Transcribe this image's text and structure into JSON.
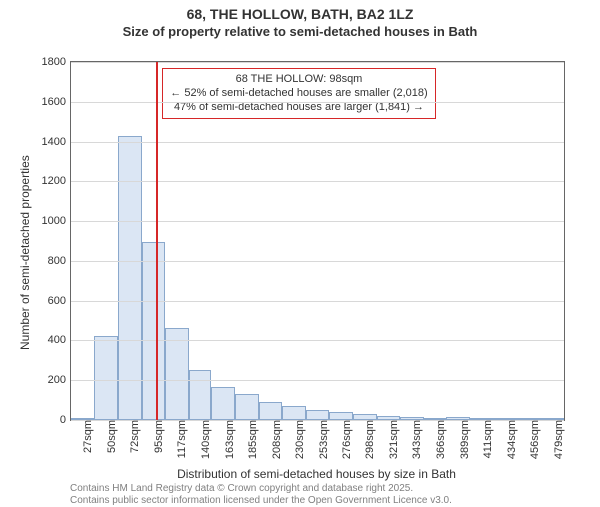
{
  "title_line1": "68, THE HOLLOW, BATH, BA2 1LZ",
  "title_line2": "Size of property relative to semi-detached houses in Bath",
  "chart": {
    "type": "histogram",
    "xlabel": "Distribution of semi-detached houses by size in Bath",
    "ylabel": "Number of semi-detached properties",
    "y_min": 0,
    "y_max": 1800,
    "y_ticks": [
      0,
      200,
      400,
      600,
      800,
      1000,
      1200,
      1400,
      1600,
      1800
    ],
    "x_tick_labels": [
      "27sqm",
      "50sqm",
      "72sqm",
      "95sqm",
      "117sqm",
      "140sqm",
      "163sqm",
      "185sqm",
      "208sqm",
      "230sqm",
      "253sqm",
      "276sqm",
      "298sqm",
      "321sqm",
      "343sqm",
      "366sqm",
      "389sqm",
      "411sqm",
      "434sqm",
      "456sqm",
      "479sqm"
    ],
    "x_tick_positions": [
      27,
      50,
      72,
      95,
      117,
      140,
      163,
      185,
      208,
      230,
      253,
      276,
      298,
      321,
      343,
      366,
      389,
      411,
      434,
      456,
      479
    ],
    "x_min": 16,
    "x_max": 490,
    "bars": [
      {
        "x_start": 16,
        "x_end": 38,
        "value": 5
      },
      {
        "x_start": 38,
        "x_end": 61,
        "value": 420
      },
      {
        "x_start": 61,
        "x_end": 84,
        "value": 1430
      },
      {
        "x_start": 84,
        "x_end": 106,
        "value": 895
      },
      {
        "x_start": 106,
        "x_end": 129,
        "value": 465
      },
      {
        "x_start": 129,
        "x_end": 151,
        "value": 250
      },
      {
        "x_start": 151,
        "x_end": 174,
        "value": 165
      },
      {
        "x_start": 174,
        "x_end": 197,
        "value": 130
      },
      {
        "x_start": 197,
        "x_end": 219,
        "value": 90
      },
      {
        "x_start": 219,
        "x_end": 242,
        "value": 70
      },
      {
        "x_start": 242,
        "x_end": 264,
        "value": 50
      },
      {
        "x_start": 264,
        "x_end": 287,
        "value": 40
      },
      {
        "x_start": 287,
        "x_end": 310,
        "value": 30
      },
      {
        "x_start": 310,
        "x_end": 332,
        "value": 22
      },
      {
        "x_start": 332,
        "x_end": 355,
        "value": 15
      },
      {
        "x_start": 355,
        "x_end": 377,
        "value": 12
      },
      {
        "x_start": 377,
        "x_end": 400,
        "value": 15
      },
      {
        "x_start": 400,
        "x_end": 423,
        "value": 8
      },
      {
        "x_start": 423,
        "x_end": 445,
        "value": 4
      },
      {
        "x_start": 445,
        "x_end": 468,
        "value": 3
      },
      {
        "x_start": 468,
        "x_end": 490,
        "value": 2
      }
    ],
    "bar_fill": "#dbe6f4",
    "bar_border": "#8aa8cc",
    "grid_color": "#d8d8d8",
    "axis_color": "#666666",
    "marker_line": {
      "x": 98,
      "color": "#d62728"
    },
    "annotation": {
      "line1": "68 THE HOLLOW: 98sqm",
      "line2": "← 52% of semi-detached houses are smaller (2,018)",
      "line3": "47% of semi-detached houses are larger (1,841) →",
      "border_color": "#d62728",
      "bg_color": "#ffffff"
    }
  },
  "attribution": {
    "line1": "Contains HM Land Registry data © Crown copyright and database right 2025.",
    "line2": "Contains public sector information licensed under the Open Government Licence v3.0."
  }
}
